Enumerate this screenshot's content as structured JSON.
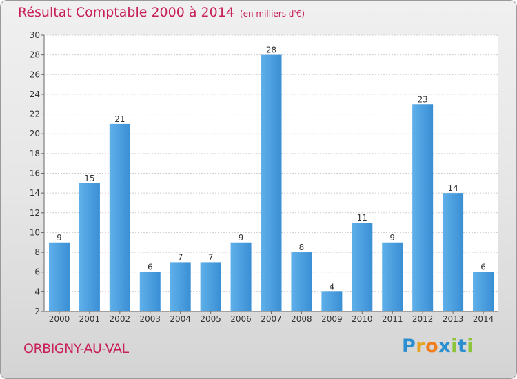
{
  "chart_data": {
    "type": "bar",
    "title": "Résultat Comptable 2000 à 2014",
    "subtitle": "(en milliers d'€)",
    "categories": [
      "2000",
      "2001",
      "2002",
      "2003",
      "2004",
      "2005",
      "2006",
      "2007",
      "2008",
      "2009",
      "2010",
      "2011",
      "2012",
      "2013",
      "2014"
    ],
    "values": [
      9,
      15,
      21,
      6,
      7,
      7,
      9,
      28,
      8,
      4,
      11,
      9,
      23,
      14,
      6
    ],
    "ylim": [
      2,
      30
    ],
    "yticks": [
      2,
      4,
      6,
      8,
      10,
      12,
      14,
      16,
      18,
      20,
      22,
      24,
      26,
      28,
      30
    ],
    "xlabel": "",
    "ylabel": "",
    "grid": true,
    "bar_color": "#3a8fd4",
    "bar_color_light": "#5fb0ea"
  },
  "footer": {
    "commune": "ORBIGNY-AU-VAL",
    "brand": "Proxiti"
  },
  "colors": {
    "title": "#c8205a",
    "brand_letters": [
      "#2a8fd0",
      "#e8a21c",
      "#f07c1a",
      "#2a8fd0",
      "#8cc43a",
      "#2a8fd0",
      "#8cc43a"
    ]
  }
}
